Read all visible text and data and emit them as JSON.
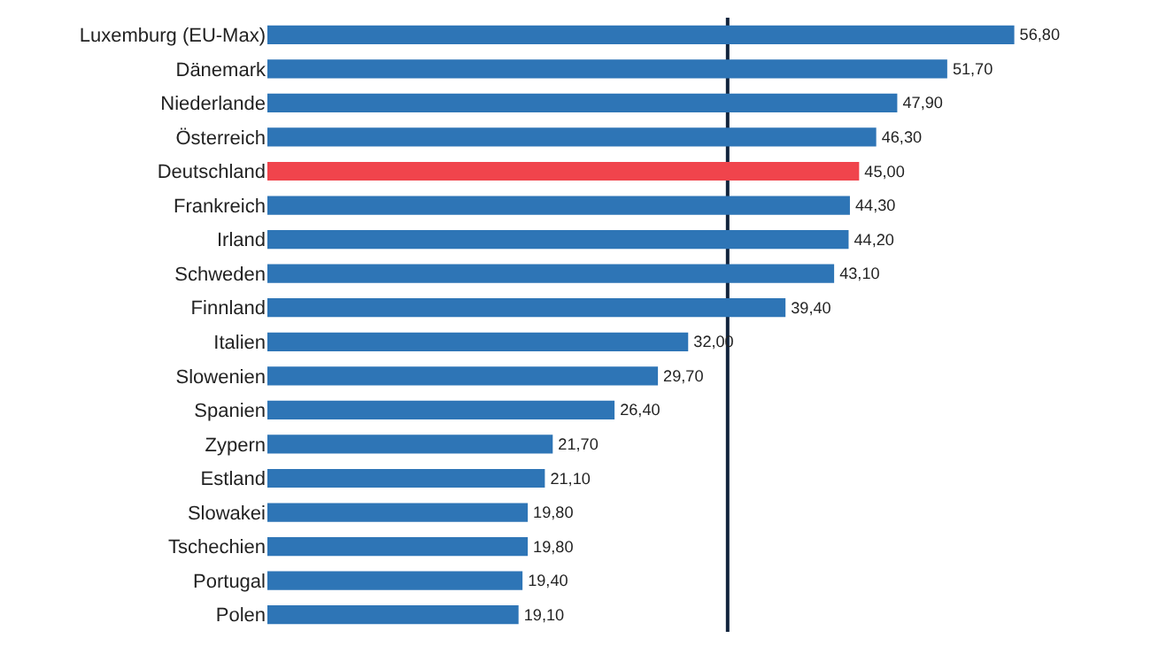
{
  "chart_data": {
    "type": "bar",
    "orientation": "horizontal",
    "categories": [
      "Luxemburg (EU-Max)",
      "Dänemark",
      "Niederlande",
      "Österreich",
      "Deutschland",
      "Frankreich",
      "Irland",
      "Schweden",
      "Finnland",
      "Italien",
      "Slowenien",
      "Spanien",
      "Zypern",
      "Estland",
      "Slowakei",
      "Tschechien",
      "Portugal",
      "Polen"
    ],
    "values": [
      56.8,
      51.7,
      47.9,
      46.3,
      45.0,
      44.3,
      44.2,
      43.1,
      39.4,
      32.0,
      29.7,
      26.4,
      21.7,
      21.1,
      19.8,
      19.8,
      19.4,
      19.1
    ],
    "value_labels": [
      "56,80",
      "51,70",
      "47,90",
      "46,30",
      "45,00",
      "44,30",
      "44,20",
      "43,10",
      "39,40",
      "32,00",
      "29,70",
      "26,40",
      "21,70",
      "21,10",
      "19,80",
      "19,80",
      "19,40",
      "19,10"
    ],
    "colors": [
      "#2e75b6",
      "#2e75b6",
      "#2e75b6",
      "#2e75b6",
      "#f0444c",
      "#2e75b6",
      "#2e75b6",
      "#2e75b6",
      "#2e75b6",
      "#2e75b6",
      "#2e75b6",
      "#2e75b6",
      "#2e75b6",
      "#2e75b6",
      "#2e75b6",
      "#2e75b6",
      "#2e75b6",
      "#2e75b6"
    ],
    "tick_labels": "y",
    "ref_lines": [
      {
        "axis": "x",
        "value": 35,
        "color": "#12243d"
      }
    ]
  }
}
